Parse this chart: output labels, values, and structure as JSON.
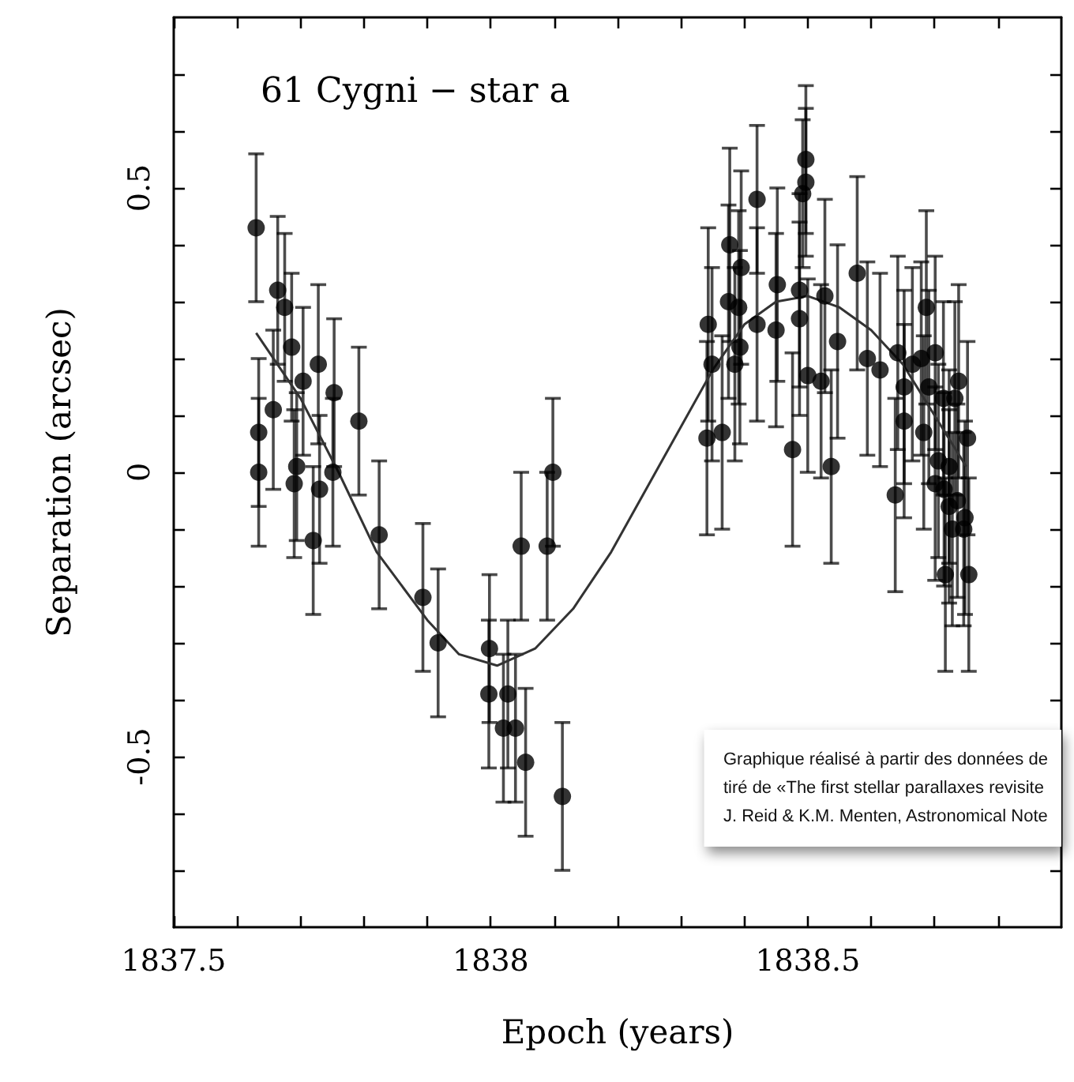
{
  "chart_data": {
    "type": "scatter",
    "title": "61 Cygni − star a",
    "xlabel": "Epoch (years)",
    "ylabel": "Separation (arcsec)",
    "annotations": [
      "Graphique réalisé à partir des données de\ntiré de «The first stellar parallaxes revisite\nJ. Reid & K.M. Menten, Astronomical Note"
    ],
    "xlim": [
      1837.5,
      1838.9
    ],
    "xticks": [
      1837.5,
      {
        "value": 1837.6,
        "label": null
      },
      {
        "value": 1837.7,
        "label": null
      },
      {
        "value": 1837.8,
        "label": null
      },
      {
        "value": 1837.9,
        "label": null
      },
      1838,
      {
        "value": 1838.1,
        "label": null
      },
      {
        "value": 1838.2,
        "label": null
      },
      {
        "value": 1838.3,
        "label": null
      },
      {
        "value": 1838.4,
        "label": null
      },
      1838.5,
      {
        "value": 1838.6,
        "label": null
      },
      {
        "value": 1838.7,
        "label": null
      },
      {
        "value": 1838.8,
        "label": null
      }
    ],
    "ylim": [
      -0.8,
      0.8
    ],
    "yticks": [
      {
        "value": -0.7,
        "label": null
      },
      {
        "value": -0.6,
        "label": null
      },
      -0.5,
      {
        "value": -0.4,
        "label": null
      },
      {
        "value": -0.3,
        "label": null
      },
      {
        "value": -0.2,
        "label": null
      },
      {
        "value": -0.1,
        "label": null
      },
      0,
      {
        "value": 0.1,
        "label": null
      },
      {
        "value": 0.2,
        "label": null
      },
      {
        "value": 0.3,
        "label": null
      },
      {
        "value": 0.4,
        "label": null
      },
      0.5,
      {
        "value": 0.6,
        "label": null
      },
      {
        "value": 0.7,
        "label": null
      }
    ],
    "marker": "circle",
    "series": [
      {
        "type": "scatter",
        "color": "#000000",
        "x": [
          1837.63,
          1837.664,
          1837.675,
          1837.686,
          1837.704,
          1837.728,
          1837.753,
          1837.792,
          1837.634,
          1837.634,
          1837.657,
          1837.69,
          1837.694,
          1837.73,
          1837.751,
          1837.72,
          1837.824,
          1837.893,
          1837.917,
          1837.998,
          1837.997,
          1838.027,
          1838.02,
          1838.039,
          1838.055,
          1838.113,
          1838.048,
          1838.089,
          1838.098,
          1838.343,
          1838.349,
          1838.341,
          1838.365,
          1838.377,
          1838.375,
          1838.391,
          1838.395,
          1838.385,
          1838.393,
          1838.42,
          1838.42,
          1838.452,
          1838.45,
          1838.476,
          1838.487,
          1838.487,
          1838.497,
          1838.497,
          1838.492,
          1838.5,
          1838.521,
          1838.527,
          1838.537,
          1838.547,
          1838.578,
          1838.594,
          1838.614,
          1838.638,
          1838.642,
          1838.652,
          1838.652,
          1838.665,
          1838.679,
          1838.687,
          1838.691,
          1838.701,
          1838.683,
          1838.714,
          1838.732,
          1838.738,
          1838.706,
          1838.723,
          1838.752,
          1838.701,
          1838.715,
          1838.736,
          1838.748,
          1838.728,
          1838.746,
          1838.717,
          1838.754,
          1838.723
        ],
        "values": [
          0.43,
          0.32,
          0.29,
          0.22,
          0.16,
          0.19,
          0.14,
          0.09,
          0.07,
          0.0,
          0.11,
          -0.02,
          0.01,
          -0.03,
          0.0,
          -0.12,
          -0.11,
          -0.22,
          -0.3,
          -0.31,
          -0.39,
          -0.39,
          -0.45,
          -0.45,
          -0.51,
          -0.57,
          -0.13,
          -0.13,
          0.0,
          0.26,
          0.19,
          0.06,
          0.07,
          0.4,
          0.3,
          0.29,
          0.36,
          0.19,
          0.22,
          0.48,
          0.26,
          0.33,
          0.25,
          0.04,
          0.32,
          0.27,
          0.55,
          0.51,
          0.49,
          0.17,
          0.16,
          0.31,
          0.01,
          0.23,
          0.35,
          0.2,
          0.18,
          -0.04,
          0.21,
          0.15,
          0.09,
          0.19,
          0.2,
          0.29,
          0.15,
          0.21,
          0.07,
          0.13,
          0.13,
          0.16,
          0.02,
          0.01,
          0.06,
          -0.02,
          -0.03,
          -0.05,
          -0.08,
          -0.1,
          -0.1,
          -0.18,
          -0.18,
          -0.06
        ],
        "errors": [
          0.13,
          0.13,
          0.13,
          0.13,
          0.13,
          0.14,
          0.13,
          0.13,
          0.13,
          0.13,
          0.14,
          0.13,
          0.13,
          0.13,
          0.13,
          0.13,
          0.13,
          0.13,
          0.13,
          0.13,
          0.13,
          0.13,
          0.13,
          0.13,
          0.13,
          0.13,
          0.13,
          0.13,
          0.13,
          0.17,
          0.17,
          0.17,
          0.17,
          0.17,
          0.17,
          0.17,
          0.17,
          0.17,
          0.17,
          0.13,
          0.17,
          0.17,
          0.17,
          0.17,
          0.17,
          0.17,
          0.13,
          0.13,
          0.13,
          0.17,
          0.17,
          0.17,
          0.17,
          0.17,
          0.17,
          0.17,
          0.17,
          0.17,
          0.17,
          0.17,
          0.17,
          0.17,
          0.17,
          0.17,
          0.17,
          0.17,
          0.17,
          0.17,
          0.17,
          0.17,
          0.17,
          0.17,
          0.17,
          0.17,
          0.17,
          0.17,
          0.17,
          0.17,
          0.17,
          0.17,
          0.17,
          0.17
        ]
      },
      {
        "type": "line",
        "color": "#333333",
        "marker": "none",
        "x": [
          1837.63,
          1837.7,
          1837.76,
          1837.82,
          1837.9,
          1837.95,
          1838.01,
          1838.07,
          1838.13,
          1838.19,
          1838.27,
          1838.35,
          1838.4,
          1838.45,
          1838.5,
          1838.55,
          1838.6,
          1838.65,
          1838.7,
          1838.75
        ],
        "values": [
          0.245,
          0.13,
          0.0,
          -0.14,
          -0.26,
          -0.32,
          -0.34,
          -0.31,
          -0.24,
          -0.14,
          0.02,
          0.18,
          0.26,
          0.3,
          0.31,
          0.29,
          0.25,
          0.19,
          0.1,
          0.01
        ]
      }
    ]
  }
}
